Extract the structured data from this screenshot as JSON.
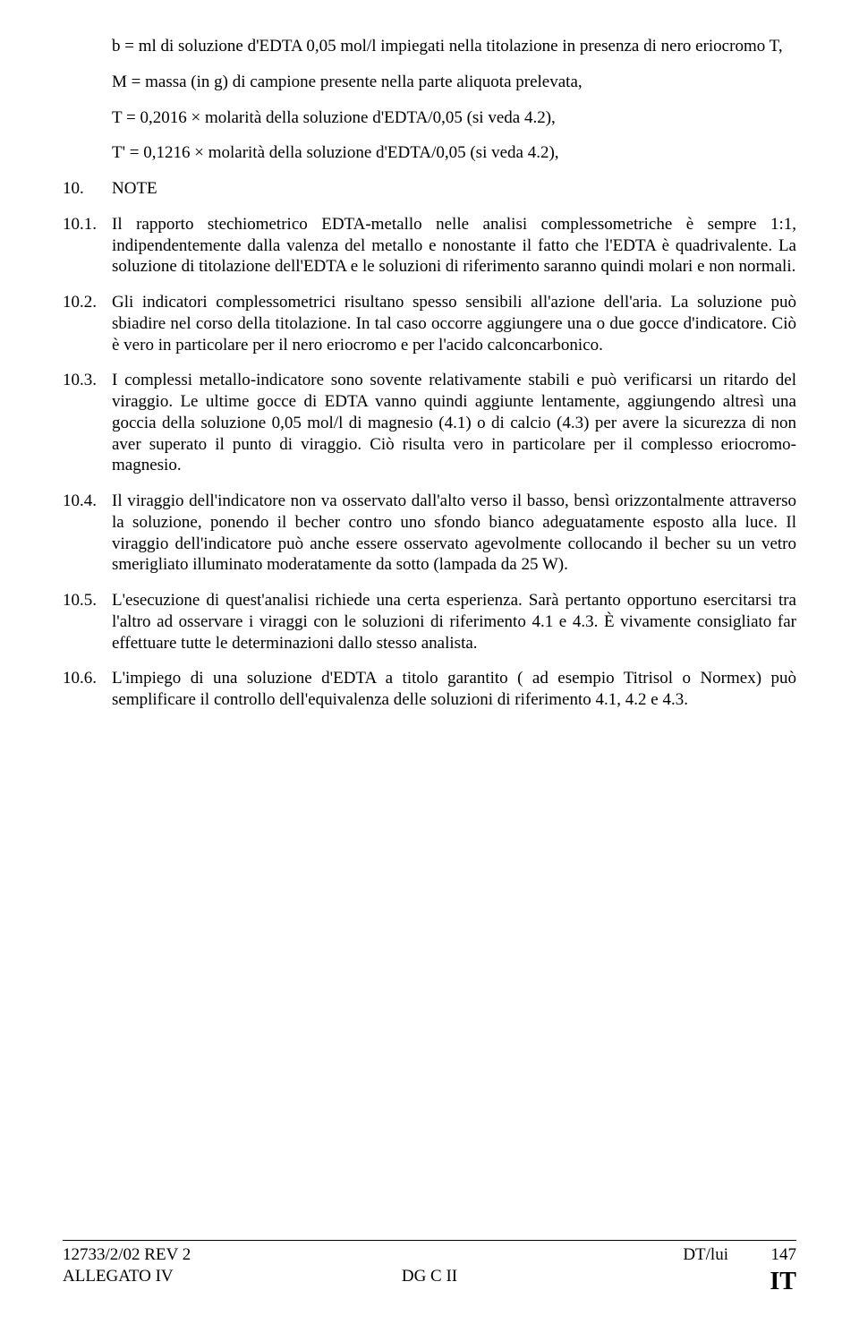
{
  "defs": {
    "b": "b  = ml di soluzione d'EDTA 0,05 mol/l impiegati nella titolazione in presenza di nero eriocromo T,",
    "M": "M = massa (in g) di campione presente nella parte aliquota prelevata,",
    "T": "T = 0,2016 × molarità della soluzione d'EDTA/0,05 (si veda 4.2),",
    "Tprime": "T' = 0,1216 × molarità della soluzione d'EDTA/0,05 (si veda 4.2),"
  },
  "section10": {
    "num": "10.",
    "label": "NOTE"
  },
  "notes": {
    "n1": {
      "num": "10.1.",
      "text": "Il rapporto stechiometrico EDTA-metallo nelle analisi complessometriche è sempre 1:1, indipendentemente dalla valenza del metallo e nonostante il fatto che l'EDTA è quadrivalente. La soluzione di titolazione dell'EDTA e le soluzioni di riferimento saranno quindi molari e non normali."
    },
    "n2": {
      "num": "10.2.",
      "text": "Gli indicatori complessometrici risultano spesso sensibili all'azione dell'aria. La soluzione può sbiadire nel corso della titolazione. In tal caso occorre aggiungere una o due gocce d'indicatore. Ciò è vero in particolare per il nero eriocromo e per l'acido calconcarbonico."
    },
    "n3": {
      "num": "10.3.",
      "text": "I complessi metallo-indicatore sono sovente relativamente stabili e può verificarsi un ritardo del viraggio. Le ultime gocce di EDTA vanno quindi aggiunte lentamente, aggiungendo altresì una goccia della soluzione 0,05 mol/l di magnesio (4.1) o di calcio (4.3) per avere la sicurezza di non aver superato il punto di viraggio. Ciò risulta vero in particolare per il complesso eriocromo-magnesio."
    },
    "n4": {
      "num": "10.4.",
      "text": "Il viraggio dell'indicatore non va osservato dall'alto verso il basso, bensì orizzontalmente attraverso la soluzione, ponendo il becher contro uno sfondo bianco adeguatamente esposto alla luce. Il viraggio dell'indicatore può anche essere osservato agevolmente collocando il becher su un vetro smerigliato illuminato moderatamente da sotto (lampada da 25 W)."
    },
    "n5": {
      "num": "10.5.",
      "text": "L'esecuzione di quest'analisi richiede una certa esperienza. Sarà pertanto opportuno esercitarsi tra l'altro ad osservare i viraggi con le soluzioni di riferimento 4.1 e 4.3. È vivamente consigliato far effettuare tutte le determinazioni dallo stesso analista."
    },
    "n6": {
      "num": "10.6.",
      "text": "L'impiego di una soluzione d'EDTA a titolo garantito ( ad esempio Titrisol o Normex) può semplificare il controllo dell'equivalenza delle soluzioni di riferimento 4.1, 4.2 e 4.3."
    }
  },
  "footer": {
    "docRef": "12733/2/02 REV 2",
    "annex": "ALLEGATO IV",
    "dept": "DG C II",
    "author": "DT/lui",
    "page": "147",
    "lang": "IT"
  }
}
